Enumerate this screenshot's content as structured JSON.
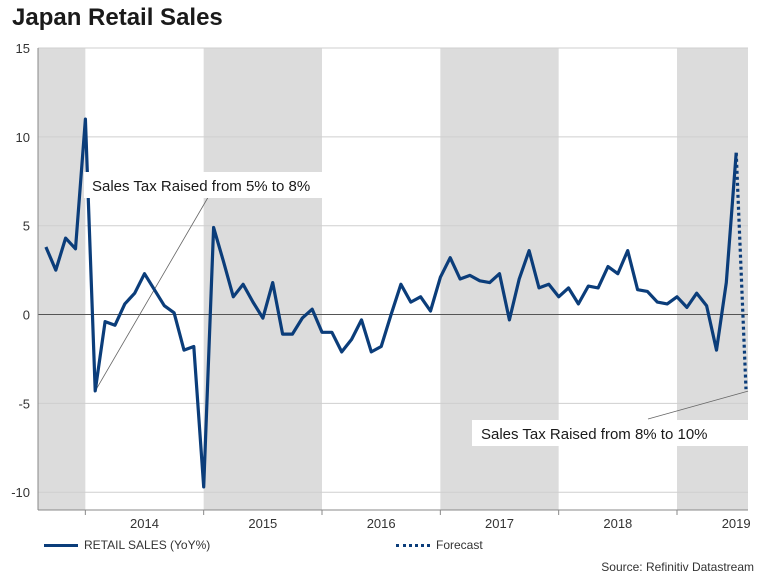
{
  "title": "Japan Retail Sales",
  "legend": {
    "series_label": "RETAIL SALES (YoY%)",
    "forecast_label": "Forecast"
  },
  "source": "Source: Refinitiv Datastream",
  "annotations": {
    "first": "Sales Tax Raised from 5% to 8%",
    "second": "Sales Tax Raised from 8% to 10%"
  },
  "colors": {
    "line": "#0b3d7a",
    "shade": "#dcdcdc",
    "grid": "#cfcfcf",
    "zero": "#555555"
  },
  "chart_data": {
    "type": "line",
    "title": "Japan Retail Sales",
    "ylim": [
      -11,
      15
    ],
    "yticks": [
      15,
      10,
      5,
      0,
      -5,
      -10
    ],
    "x_start": 2013.6,
    "x_end": 2019.6,
    "year_labels": [
      "2014",
      "2015",
      "2016",
      "2017",
      "2018",
      "2019"
    ],
    "shaded_years": [
      2013,
      2015,
      2017,
      2019
    ],
    "start_time": 2013.667,
    "step": 0.08333,
    "series": [
      {
        "name": "RETAIL SALES (YoY%)",
        "values": [
          3.8,
          2.5,
          4.3,
          3.7,
          11.0,
          -4.3,
          -0.4,
          -0.6,
          0.6,
          1.2,
          2.3,
          1.4,
          0.5,
          0.1,
          -2.0,
          -1.8,
          -9.7,
          4.9,
          3.0,
          1.0,
          1.7,
          0.7,
          -0.2,
          1.8,
          -1.1,
          -1.1,
          -0.2,
          0.3,
          -1.0,
          -1.0,
          -2.1,
          -1.4,
          -0.3,
          -2.1,
          -1.8,
          0.0,
          1.7,
          0.7,
          1.0,
          0.2,
          2.1,
          3.2,
          2.0,
          2.2,
          1.9,
          1.8,
          2.3,
          -0.3,
          2.0,
          3.6,
          1.5,
          1.7,
          1.0,
          1.5,
          0.6,
          1.6,
          1.5,
          2.7,
          2.3,
          3.6,
          1.4,
          1.3,
          0.7,
          0.6,
          1.0,
          0.4,
          1.2,
          0.5,
          -2.0,
          1.8,
          9.1
        ]
      },
      {
        "name": "Forecast",
        "values": [
          9.1,
          -4.2
        ]
      }
    ]
  }
}
